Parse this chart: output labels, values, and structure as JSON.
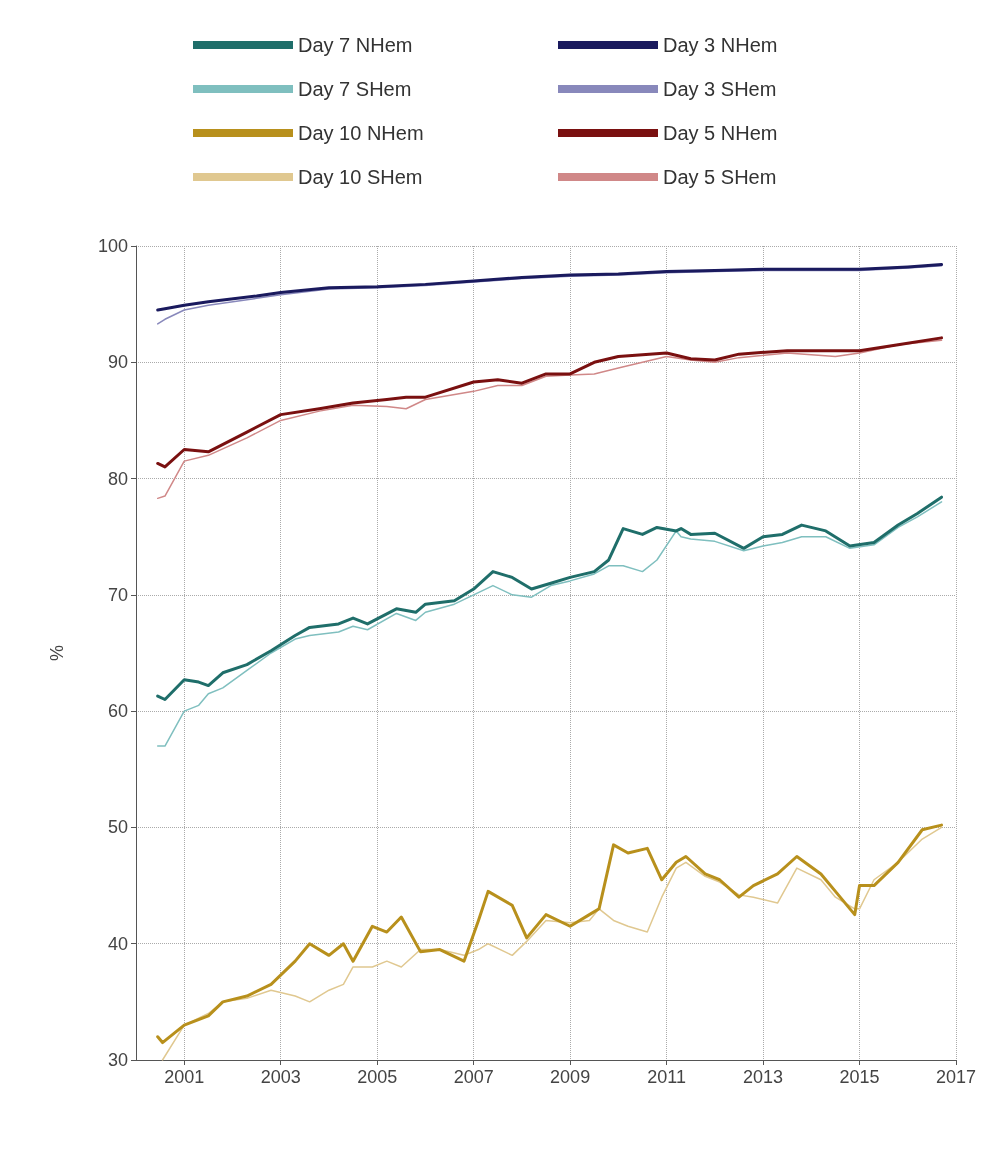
{
  "chart_data": {
    "type": "line",
    "ylabel": "%",
    "xlim": [
      2000,
      2017
    ],
    "xticks": [
      2001,
      2003,
      2005,
      2007,
      2009,
      2011,
      2013,
      2015,
      2017
    ],
    "ylim": [
      30,
      100
    ],
    "yticks": [
      30,
      40,
      50,
      60,
      70,
      80,
      90,
      100
    ],
    "grid": true,
    "legend": "top",
    "marker": "none",
    "line_style": "solid",
    "series": [
      {
        "name": "Day 7 NHem",
        "color": "#1f6e6a",
        "x": [
          2000.45,
          2000.6,
          2001.0,
          2001.3,
          2001.5,
          2001.8,
          2002.3,
          2002.8,
          2003.3,
          2003.6,
          2004.2,
          2004.5,
          2004.8,
          2005.4,
          2005.8,
          2006.0,
          2006.6,
          2007.0,
          2007.4,
          2007.8,
          2008.2,
          2008.6,
          2009.0,
          2009.5,
          2009.8,
          2010.1,
          2010.5,
          2010.8,
          2011.2,
          2011.3,
          2011.5,
          2012.0,
          2012.6,
          2013.0,
          2013.4,
          2013.8,
          2014.3,
          2014.8,
          2015.3,
          2015.8,
          2016.2,
          2016.7
        ],
        "values": [
          61.3,
          61,
          62.7,
          62.5,
          62.2,
          63.3,
          64,
          65.2,
          66.5,
          67.2,
          67.5,
          68,
          67.5,
          68.8,
          68.5,
          69.2,
          69.5,
          70.5,
          72,
          71.5,
          70.5,
          71,
          71.5,
          72,
          73,
          75.7,
          75.2,
          75.8,
          75.5,
          75.7,
          75.2,
          75.3,
          74,
          75,
          75.2,
          76,
          75.5,
          74.2,
          74.5,
          76,
          77,
          78.4
        ]
      },
      {
        "name": "Day 7 SHem",
        "color": "#7fbfbf",
        "x": [
          2000.45,
          2000.6,
          2001.0,
          2001.3,
          2001.5,
          2001.8,
          2002.3,
          2002.8,
          2003.3,
          2003.6,
          2004.2,
          2004.5,
          2004.8,
          2005.4,
          2005.8,
          2006.0,
          2006.6,
          2007.0,
          2007.4,
          2007.8,
          2008.2,
          2008.6,
          2009.0,
          2009.5,
          2009.8,
          2010.1,
          2010.5,
          2010.8,
          2011.2,
          2011.3,
          2011.5,
          2012.0,
          2012.6,
          2013.0,
          2013.4,
          2013.8,
          2014.3,
          2014.8,
          2015.3,
          2015.8,
          2016.2,
          2016.7
        ],
        "values": [
          57,
          57,
          60,
          60.5,
          61.5,
          62,
          63.5,
          65,
          66.2,
          66.5,
          66.8,
          67.3,
          67,
          68.4,
          67.8,
          68.5,
          69.2,
          70,
          70.8,
          70,
          69.8,
          70.8,
          71.2,
          71.8,
          72.5,
          72.5,
          72,
          73,
          75.5,
          75,
          74.8,
          74.6,
          73.8,
          74.2,
          74.5,
          75,
          75,
          74,
          74.3,
          75.8,
          76.7,
          78
        ]
      },
      {
        "name": "Day 10 NHem",
        "color": "#b8901c",
        "x": [
          2000.45,
          2000.55,
          2001.0,
          2001.5,
          2001.8,
          2002.3,
          2002.8,
          2003.3,
          2003.6,
          2004.0,
          2004.3,
          2004.5,
          2004.9,
          2005.2,
          2005.5,
          2005.9,
          2006.3,
          2006.8,
          2007.1,
          2007.3,
          2007.8,
          2008.1,
          2008.5,
          2009.0,
          2009.4,
          2009.6,
          2009.9,
          2010.2,
          2010.6,
          2010.9,
          2011.2,
          2011.4,
          2011.8,
          2012.1,
          2012.5,
          2012.8,
          2013.3,
          2013.7,
          2014.2,
          2014.5,
          2014.9,
          2015.0,
          2015.3,
          2015.8,
          2016.3,
          2016.7
        ],
        "values": [
          32,
          31.5,
          33,
          33.8,
          35,
          35.5,
          36.5,
          38.5,
          40,
          39,
          40,
          38.5,
          41.5,
          41,
          42.3,
          39.3,
          39.5,
          38.5,
          42,
          44.5,
          43.3,
          40.5,
          42.5,
          41.5,
          42.5,
          43,
          48.5,
          47.8,
          48.2,
          45.5,
          47,
          47.5,
          46,
          45.5,
          44,
          45,
          46,
          47.5,
          46,
          44.5,
          42.5,
          45,
          45,
          47,
          49.8,
          50.2
        ]
      },
      {
        "name": "Day 10 SHem",
        "color": "#e0c890",
        "x": [
          2000.55,
          2001.0,
          2001.5,
          2001.8,
          2002.3,
          2002.8,
          2003.3,
          2003.6,
          2004.0,
          2004.3,
          2004.5,
          2004.9,
          2005.2,
          2005.5,
          2005.9,
          2006.3,
          2006.8,
          2007.1,
          2007.3,
          2007.8,
          2008.1,
          2008.5,
          2009.0,
          2009.4,
          2009.6,
          2009.9,
          2010.2,
          2010.6,
          2010.9,
          2011.2,
          2011.4,
          2011.8,
          2012.1,
          2012.5,
          2012.8,
          2013.3,
          2013.7,
          2014.2,
          2014.5,
          2014.9,
          2015.0,
          2015.3,
          2015.8,
          2016.3,
          2016.7
        ],
        "values": [
          30,
          33,
          34,
          35,
          35.3,
          36,
          35.5,
          35,
          36,
          36.5,
          38,
          38,
          38.5,
          38,
          39.5,
          39.5,
          39,
          39.5,
          40,
          39,
          40.2,
          42,
          41.8,
          42,
          43,
          42,
          41.5,
          41,
          44,
          46.5,
          47,
          45.8,
          45.3,
          44.2,
          44,
          43.5,
          46.5,
          45.5,
          44,
          43,
          43,
          45.5,
          47,
          49,
          50
        ]
      },
      {
        "name": "Day 3 NHem",
        "color": "#1a1a5e",
        "x": [
          2000.45,
          2000.6,
          2001.0,
          2001.5,
          2002.5,
          2003.0,
          2004.0,
          2005.0,
          2006.0,
          2007.0,
          2008.0,
          2009.0,
          2010.0,
          2011.0,
          2012.0,
          2013.0,
          2014.0,
          2015.0,
          2016.0,
          2016.7
        ],
        "values": [
          94.5,
          94.6,
          94.9,
          95.2,
          95.7,
          96,
          96.4,
          96.5,
          96.7,
          97,
          97.3,
          97.5,
          97.6,
          97.8,
          97.9,
          98,
          98,
          98,
          98.2,
          98.4
        ]
      },
      {
        "name": "Day 3 SHem",
        "color": "#8888bb",
        "x": [
          2000.45,
          2000.6,
          2001.0,
          2001.5,
          2002.5,
          2003.0,
          2004.0,
          2005.0,
          2006.0,
          2007.0,
          2008.0,
          2009.0,
          2010.0,
          2011.0,
          2012.0,
          2013.0,
          2014.0,
          2015.0,
          2016.0,
          2016.7
        ],
        "values": [
          93.3,
          93.7,
          94.5,
          94.9,
          95.5,
          95.8,
          96.3,
          96.4,
          96.6,
          96.9,
          97.2,
          97.4,
          97.5,
          97.7,
          97.8,
          97.9,
          97.9,
          97.9,
          98.1,
          98.3
        ]
      },
      {
        "name": "Day 5 NHem",
        "color": "#7a1010",
        "x": [
          2000.45,
          2000.6,
          2001.0,
          2001.5,
          2002.3,
          2003.0,
          2003.8,
          2004.5,
          2005.2,
          2005.6,
          2006.0,
          2007.0,
          2007.5,
          2008.0,
          2008.5,
          2009.0,
          2009.5,
          2010.0,
          2011.0,
          2011.5,
          2012.0,
          2012.5,
          2013.5,
          2014.5,
          2015.0,
          2015.8,
          2016.7
        ],
        "values": [
          81.3,
          81,
          82.5,
          82.3,
          84,
          85.5,
          86,
          86.5,
          86.8,
          87,
          87,
          88.3,
          88.5,
          88.2,
          89,
          89,
          90,
          90.5,
          90.8,
          90.3,
          90.2,
          90.7,
          91,
          91,
          91,
          91.5,
          92.1
        ]
      },
      {
        "name": "Day 5 SHem",
        "color": "#d08888",
        "x": [
          2000.45,
          2000.6,
          2001.0,
          2001.5,
          2002.3,
          2003.0,
          2003.8,
          2004.5,
          2005.2,
          2005.6,
          2006.0,
          2007.0,
          2007.5,
          2008.0,
          2008.5,
          2009.0,
          2009.5,
          2010.0,
          2011.0,
          2011.5,
          2012.0,
          2012.5,
          2013.5,
          2014.5,
          2015.0,
          2015.8,
          2016.7
        ],
        "values": [
          78.3,
          78.5,
          81.5,
          82,
          83.5,
          85,
          85.8,
          86.3,
          86.2,
          86,
          86.8,
          87.5,
          88,
          88,
          88.8,
          88.9,
          89,
          89.5,
          90.5,
          90.2,
          90,
          90.4,
          90.8,
          90.5,
          90.8,
          91.5,
          91.9
        ]
      }
    ]
  }
}
